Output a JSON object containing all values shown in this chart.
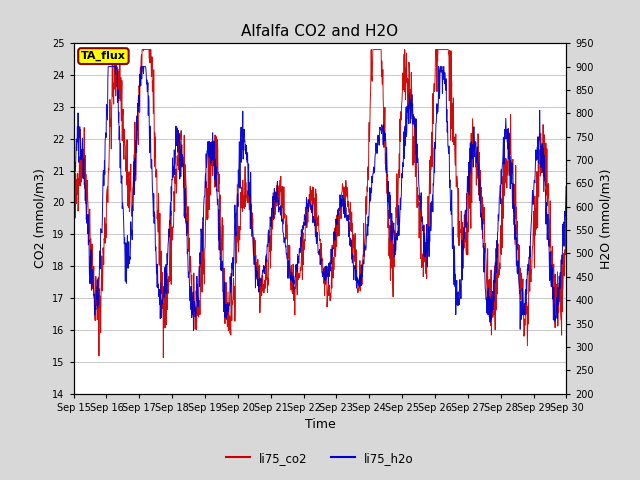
{
  "title": "Alfalfa CO2 and H2O",
  "xlabel": "Time",
  "ylabel_left": "CO2 (mmol/m3)",
  "ylabel_right": "H2O (mmol/m3)",
  "ylim_left": [
    14.0,
    25.0
  ],
  "ylim_right": [
    200,
    950
  ],
  "yticks_left": [
    14.0,
    15.0,
    16.0,
    17.0,
    18.0,
    19.0,
    20.0,
    21.0,
    22.0,
    23.0,
    24.0,
    25.0
  ],
  "yticks_right": [
    200,
    250,
    300,
    350,
    400,
    450,
    500,
    550,
    600,
    650,
    700,
    750,
    800,
    850,
    900,
    950
  ],
  "xtick_labels": [
    "Sep 15",
    "Sep 16",
    "Sep 17",
    "Sep 18",
    "Sep 19",
    "Sep 20",
    "Sep 21",
    "Sep 22",
    "Sep 23",
    "Sep 24",
    "Sep 25",
    "Sep 26",
    "Sep 27",
    "Sep 28",
    "Sep 29",
    "Sep 30"
  ],
  "annotation_text": "TA_flux",
  "annotation_bg": "#FFFF00",
  "annotation_border": "#8B0000",
  "legend_labels": [
    "li75_co2",
    "li75_h2o"
  ],
  "line_colors": [
    "#CC0000",
    "#0000CC"
  ],
  "background_color": "#D8D8D8",
  "plot_bg": "#FFFFFF",
  "grid_color": "#C0C0C0",
  "title_fontsize": 11,
  "axis_label_fontsize": 9,
  "tick_fontsize": 7
}
